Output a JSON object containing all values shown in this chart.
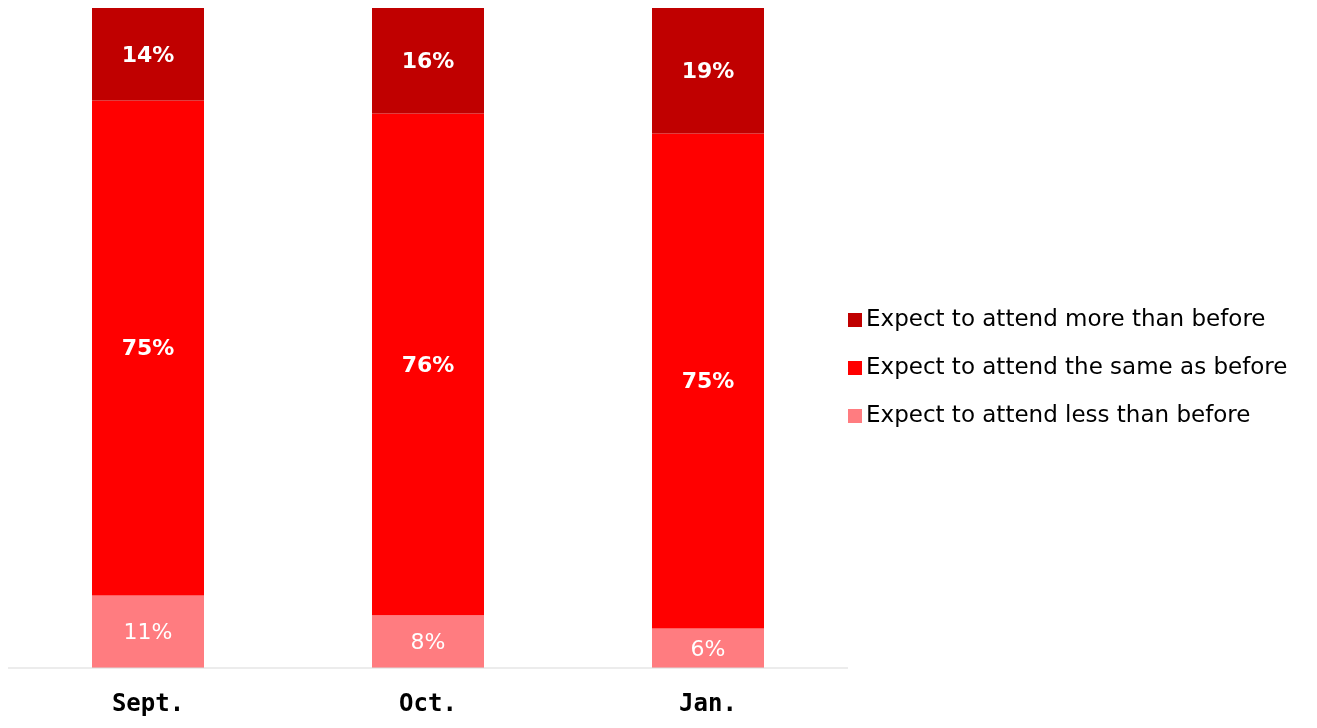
{
  "chart_data": {
    "type": "bar",
    "stacked": true,
    "categories": [
      "Sept.",
      "Oct.",
      "Jan."
    ],
    "legend": "right",
    "series": [
      {
        "name": "Expect to attend less than before",
        "color": "#ff7c80",
        "values": [
          11,
          8,
          6
        ],
        "value_labels": [
          "11%",
          "8%",
          "6%"
        ]
      },
      {
        "name": "Expect to attend the same as before",
        "color": "#ff0000",
        "values": [
          75,
          76,
          75
        ],
        "value_labels": [
          "75%",
          "76%",
          "75%"
        ]
      },
      {
        "name": "Expect to attend more than before",
        "color": "#c00000",
        "values": [
          14,
          16,
          19
        ],
        "value_labels": [
          "14%",
          "16%",
          "19%"
        ]
      }
    ]
  }
}
